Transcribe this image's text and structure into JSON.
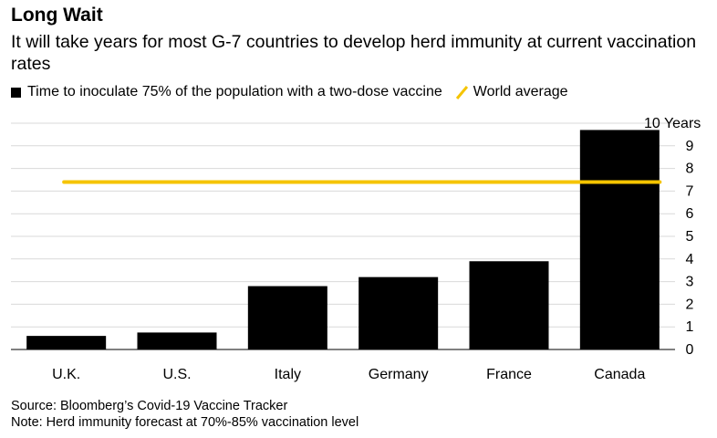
{
  "title": "Long Wait",
  "subtitle": "It will take years for most G-7 countries to develop herd immunity at current vaccination rates",
  "legend": {
    "bar_label": "Time to inoculate 75% of the population with a two-dose vaccine",
    "line_label": "World average"
  },
  "chart_data": {
    "type": "bar",
    "categories": [
      "U.K.",
      "U.S.",
      "Italy",
      "Germany",
      "France",
      "Canada"
    ],
    "series": [
      {
        "name": "Time to inoculate 75% of the population with a two-dose vaccine",
        "values": [
          0.6,
          0.75,
          2.8,
          3.2,
          3.9,
          9.7
        ]
      }
    ],
    "reference_line": {
      "name": "World average",
      "value": 7.4
    },
    "ylim": [
      0,
      10
    ],
    "yticks": [
      0,
      1,
      2,
      3,
      4,
      5,
      6,
      7,
      8,
      9,
      10
    ],
    "top_tick_label": "10 Years",
    "yaxis_position": "right",
    "grid": true,
    "colors": {
      "bar": "#000000",
      "reference": "#f5c400",
      "grid": "#d9d9d9"
    }
  },
  "notes": {
    "source": "Source: Bloomberg’s Covid-19 Vaccine Tracker",
    "note": "Note: Herd immunity forecast at 70%-85% vaccination level"
  }
}
